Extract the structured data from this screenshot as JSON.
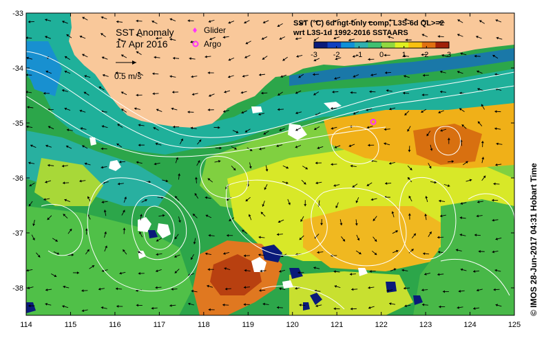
{
  "map": {
    "panel_title": "SST Anomaly",
    "date": "17 Apr 2016",
    "vector_scale_label": "0.5 m/s",
    "product_line1": "SST (°C) 6d ngt-only comp, L3S-6d QL>=2",
    "product_line2": "wrt L3S-1d 1992-2016 SSTAARS",
    "credit": "© IMOS 28-Jun-2017 04:31 Hobart Time",
    "legend": [
      {
        "label": "Glider",
        "symbol": "diamond",
        "color": "#ff33ff"
      },
      {
        "label": "Argo",
        "symbol": "ring",
        "color": "#ff33ff"
      }
    ],
    "colorbar": {
      "min": -3,
      "max": 3,
      "tick_labels": [
        "-3",
        "-2",
        "-1",
        "0",
        "1",
        "2",
        "3"
      ],
      "colors": [
        "#0a1a7a",
        "#1040c0",
        "#1090d8",
        "#30b0b0",
        "#40c070",
        "#90d840",
        "#e0f020",
        "#f8c010",
        "#e07010",
        "#a02008"
      ]
    },
    "x_axis": {
      "min": 114,
      "max": 125,
      "tick_labels": [
        "114",
        "115",
        "116",
        "117",
        "118",
        "119",
        "120",
        "121",
        "122",
        "123",
        "124",
        "125"
      ]
    },
    "y_axis": {
      "min": -38.5,
      "max": -33,
      "tick_labels": [
        "-33",
        "-34",
        "-35",
        "-36",
        "-37",
        "-38"
      ]
    },
    "argo_position": {
      "lon": 121.82,
      "lat": -34.98
    },
    "colors": {
      "land": "#f9c89a",
      "ocean_base": "#2ca64a",
      "contour": "#ffffff"
    }
  }
}
